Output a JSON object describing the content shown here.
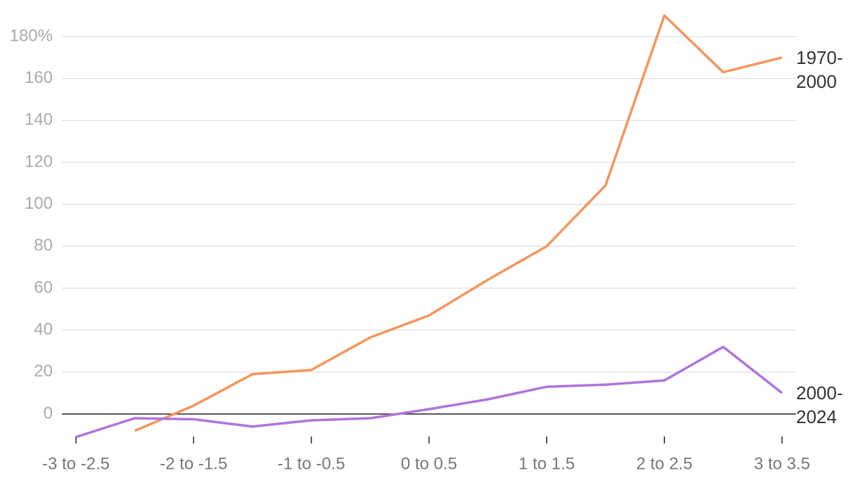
{
  "chart_data": {
    "type": "line",
    "categories": [
      "-3 to -2.5",
      null,
      "-2 to -1.5",
      null,
      "-1 to -0.5",
      null,
      "0 to 0.5",
      null,
      "1 to 1.5",
      null,
      "2 to 2.5",
      null,
      "3 to 3.5"
    ],
    "series": [
      {
        "name": "1970-2000",
        "color": "#f7945c",
        "values": [
          null,
          -8,
          4,
          19,
          21,
          36.5,
          47,
          64,
          80,
          109,
          190,
          163,
          170
        ]
      },
      {
        "name": "2000-2024",
        "color": "#b173dc",
        "values": [
          -11,
          -2,
          -2.5,
          -6,
          -3,
          -2,
          2.3,
          7,
          13,
          14,
          16,
          32,
          10
        ]
      }
    ],
    "ylim": [
      -12,
      190
    ],
    "yticks": [
      0,
      20,
      40,
      60,
      80,
      100,
      120,
      140,
      160,
      {
        "value": 180,
        "label": "180%"
      }
    ],
    "grid": true
  }
}
